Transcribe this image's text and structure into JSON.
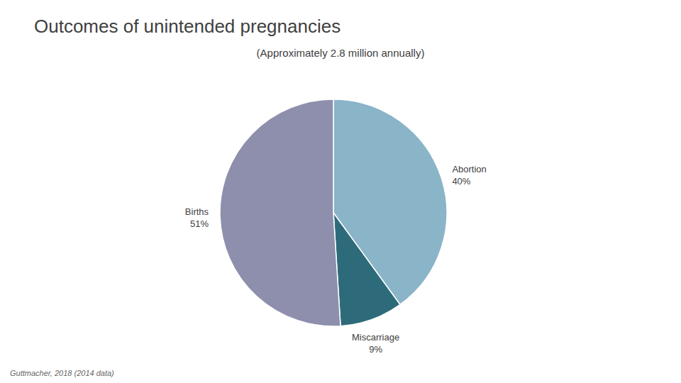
{
  "chart_data": {
    "type": "pie",
    "title": "Outcomes of unintended pregnancies",
    "subtitle": "(Approximately 2.8 million annually)",
    "categories": [
      "Abortion",
      "Miscarriage",
      "Births"
    ],
    "values": [
      40,
      9,
      51
    ],
    "value_labels": [
      "40%",
      "9%",
      "51%"
    ],
    "data_labels": true,
    "colors": [
      "#8ab4c8",
      "#2e6b7a",
      "#8d8fad"
    ],
    "annotations": [
      "Guttmacher, 2018 (2014 data)"
    ]
  }
}
